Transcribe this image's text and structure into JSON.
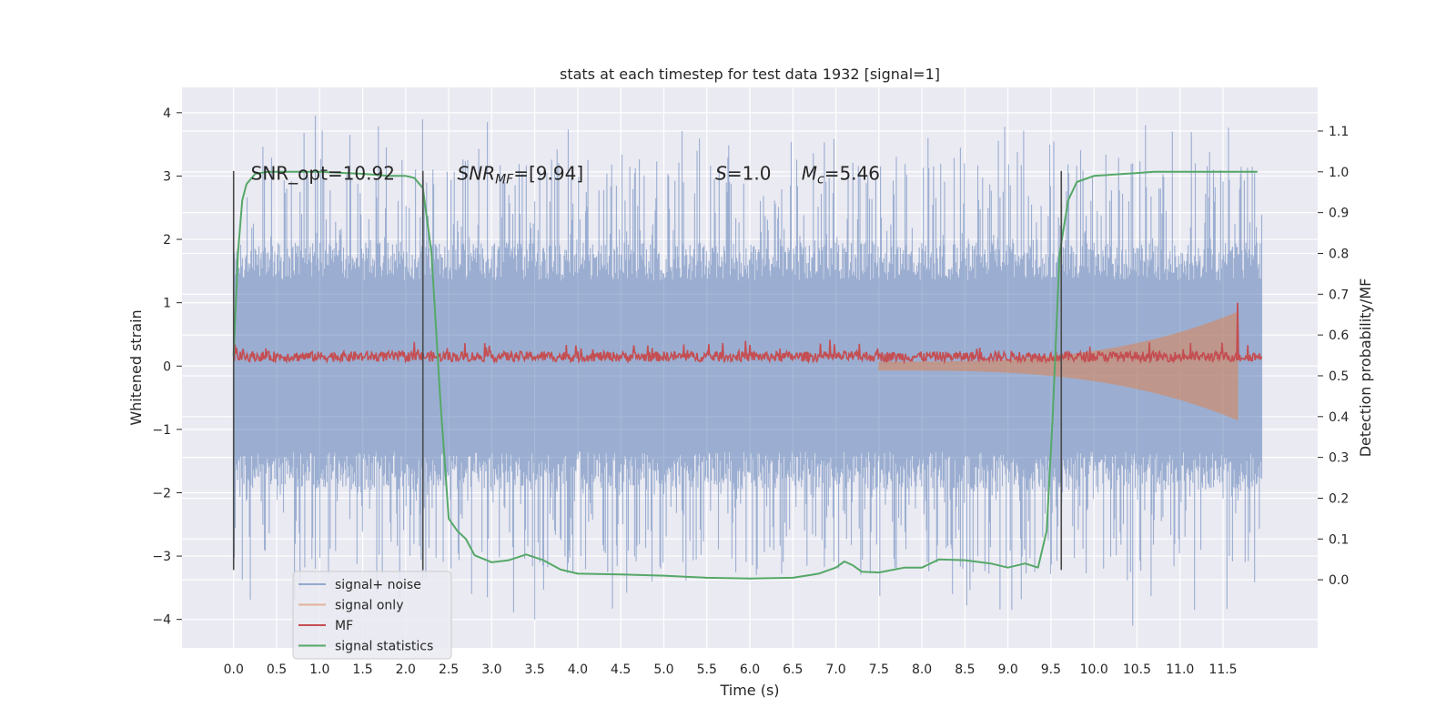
{
  "chart_data": {
    "type": "line",
    "title": "stats at each timestep for test data 1932 [signal=1]",
    "xlabel": "Time (s)",
    "ylabel": "Whitened strain",
    "y2label": "Detection probability/MF",
    "xlim": [
      -0.6,
      12.6
    ],
    "ylim": [
      -4.45,
      4.4
    ],
    "y2lim": [
      -0.167,
      1.207
    ],
    "grid": true,
    "legend_position": "lower-left",
    "x_ticks": [
      "0.0",
      "0.5",
      "1.0",
      "1.5",
      "2.0",
      "2.5",
      "3.0",
      "3.5",
      "4.0",
      "4.5",
      "5.0",
      "5.5",
      "6.0",
      "6.5",
      "7.0",
      "7.5",
      "8.0",
      "8.5",
      "9.0",
      "9.5",
      "10.0",
      "10.5",
      "11.0",
      "11.5"
    ],
    "y_ticks": [
      "4",
      "3",
      "2",
      "1",
      "0",
      "−1",
      "−2",
      "−3",
      "−4"
    ],
    "y2_ticks": [
      "1.1",
      "1.0",
      "0.9",
      "0.8",
      "0.7",
      "0.6",
      "0.5",
      "0.4",
      "0.3",
      "0.2",
      "0.1",
      "0.0"
    ],
    "annotations": [
      {
        "text": "SNR_opt=10.92",
        "x": 0.2,
        "y": 3.0
      },
      {
        "text": "SNR_MF=[9.94]",
        "x": 2.6,
        "y": 3.0
      },
      {
        "text": "S=1.0",
        "x": 5.6,
        "y": 3.0
      },
      {
        "text": "M_c=5.46",
        "x": 6.6,
        "y": 3.0
      }
    ],
    "vertical_markers": [
      0.0,
      2.2,
      9.62
    ],
    "series": [
      {
        "name": "signal+ noise",
        "color": "#4c72b0",
        "axis": "left",
        "x_start": 0.0,
        "x_end": 11.95,
        "typical_band": [
          -1.35,
          1.35
        ],
        "peak_max": 3.95,
        "peak_min": -4.1
      },
      {
        "name": "signal only",
        "color": "#dd8452",
        "axis": "left",
        "x_start": 7.5,
        "x_end": 11.67,
        "envelope_start": 0.02,
        "envelope_end": 0.85
      },
      {
        "name": "MF",
        "color": "#c44e52",
        "axis": "left",
        "x_start": 0.0,
        "x_end": 11.95,
        "baseline": 0.15,
        "noise": 0.08,
        "spike_x": 11.67,
        "spike_y": 1.0
      },
      {
        "name": "signal statistics",
        "color": "#55a868",
        "axis": "right",
        "x": [
          0.0,
          0.05,
          0.1,
          0.15,
          0.25,
          0.4,
          0.6,
          1.0,
          1.5,
          1.8,
          2.0,
          2.1,
          2.2,
          2.3,
          2.4,
          2.5,
          2.6,
          2.7,
          2.8,
          3.0,
          3.2,
          3.4,
          3.6,
          3.8,
          4.0,
          4.5,
          5.0,
          5.5,
          6.0,
          6.5,
          6.8,
          7.0,
          7.1,
          7.2,
          7.3,
          7.5,
          7.8,
          8.0,
          8.2,
          8.5,
          8.8,
          9.0,
          9.2,
          9.35,
          9.45,
          9.52,
          9.6,
          9.7,
          9.8,
          10.0,
          10.5,
          10.7,
          11.0,
          11.5,
          11.9
        ],
        "y": [
          0.55,
          0.8,
          0.93,
          0.97,
          0.995,
          1.0,
          1.0,
          1.0,
          0.995,
          0.99,
          0.99,
          0.985,
          0.96,
          0.8,
          0.45,
          0.15,
          0.12,
          0.1,
          0.06,
          0.043,
          0.048,
          0.062,
          0.048,
          0.025,
          0.015,
          0.013,
          0.01,
          0.005,
          0.003,
          0.005,
          0.015,
          0.03,
          0.045,
          0.035,
          0.02,
          0.018,
          0.03,
          0.03,
          0.05,
          0.048,
          0.04,
          0.03,
          0.04,
          0.03,
          0.12,
          0.4,
          0.8,
          0.93,
          0.975,
          0.99,
          0.997,
          1.0,
          1.0,
          1.0,
          1.0
        ]
      }
    ]
  }
}
